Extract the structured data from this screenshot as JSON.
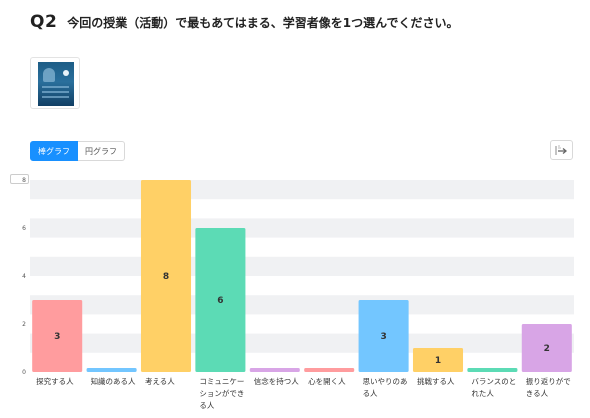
{
  "question": {
    "number": "Q2",
    "text": "今回の授業（活動）で最もあてはまる、学習者像を1つ選んでください。"
  },
  "thumbnail_icon": "learner-profile-poster-thumbnail",
  "toggle": {
    "bar_label": "棒グラフ",
    "pie_label": "円グラフ",
    "selected": "bar"
  },
  "export_icon": "export-arrow-icon",
  "colors": {
    "accent": "#1890ff",
    "grid_band": "#f0f1f3"
  },
  "chart_data": {
    "type": "bar",
    "title": "",
    "xlabel": "",
    "ylabel": "",
    "ylim": [
      0,
      8
    ],
    "yticks": [
      "0",
      "2",
      "4",
      "6",
      "8"
    ],
    "grid": true,
    "categories": [
      "探究する人",
      "知識のある人",
      "考える人",
      "コミュニケーションができる人",
      "信念を持つ人",
      "心を開く人",
      "思いやりのある人",
      "挑戦する人",
      "バランスのとれた人",
      "振り返りができる人"
    ],
    "values": [
      3,
      0,
      8,
      6,
      0,
      0,
      3,
      1,
      0,
      2
    ],
    "value_labels": [
      "3",
      "",
      "8",
      "6",
      "",
      "",
      "3",
      "1",
      "",
      "2"
    ],
    "colors": [
      "#ff9c9e",
      "#73c6ff",
      "#ffd066",
      "#5cdbb5",
      "#d8a5e6",
      "#ff9c9e",
      "#73c6ff",
      "#ffd066",
      "#5cdbb5",
      "#d8a5e6"
    ]
  }
}
